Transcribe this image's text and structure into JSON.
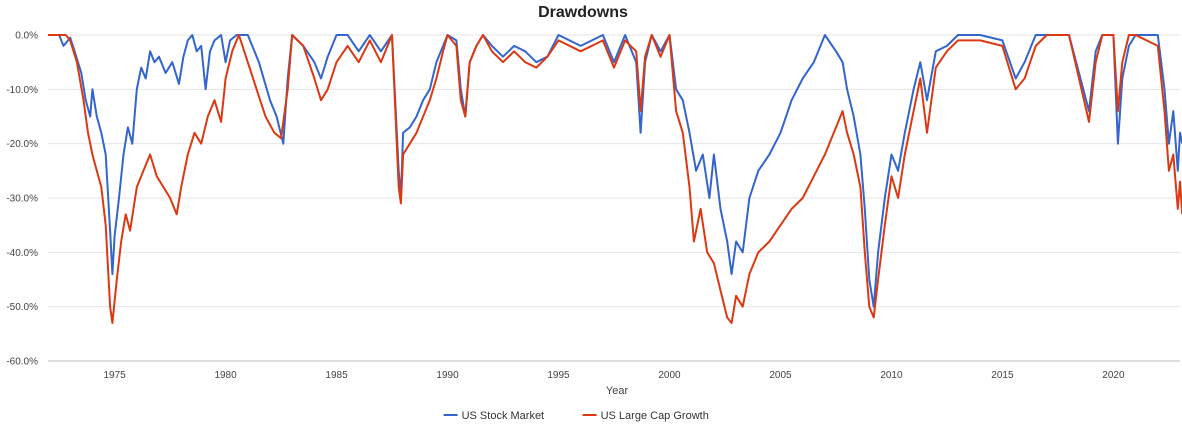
{
  "chart_data": {
    "type": "line",
    "title": "Drawdowns",
    "xlabel": "Year",
    "ylabel": "",
    "xlim": [
      1972,
      2023
    ],
    "ylim": [
      -60,
      0
    ],
    "y_ticks": [
      0,
      -10,
      -20,
      -30,
      -40,
      -50,
      -60
    ],
    "y_tick_labels": [
      "0.0%",
      "-10.0%",
      "-20.0%",
      "-30.0%",
      "-40.0%",
      "-50.0%",
      "-60.0%"
    ],
    "x_ticks": [
      1975,
      1980,
      1985,
      1990,
      1995,
      2000,
      2005,
      2010,
      2015,
      2020
    ],
    "x_tick_labels": [
      "1975",
      "1980",
      "1985",
      "1990",
      "1995",
      "2000",
      "2005",
      "2010",
      "2015",
      "2020"
    ],
    "grid": true,
    "legend_position": "bottom",
    "series": [
      {
        "name": "US Stock Market",
        "color": "#3366cc",
        "points": [
          [
            1972.0,
            0
          ],
          [
            1972.5,
            0
          ],
          [
            1972.7,
            -2
          ],
          [
            1973.0,
            -0.5
          ],
          [
            1973.2,
            -3
          ],
          [
            1973.5,
            -7
          ],
          [
            1973.7,
            -12
          ],
          [
            1973.9,
            -15
          ],
          [
            1974.0,
            -10
          ],
          [
            1974.2,
            -15
          ],
          [
            1974.4,
            -18
          ],
          [
            1974.6,
            -22
          ],
          [
            1974.8,
            -36
          ],
          [
            1974.9,
            -44
          ],
          [
            1975.0,
            -37
          ],
          [
            1975.2,
            -30
          ],
          [
            1975.4,
            -22
          ],
          [
            1975.6,
            -17
          ],
          [
            1975.8,
            -20
          ],
          [
            1976.0,
            -10
          ],
          [
            1976.2,
            -6
          ],
          [
            1976.4,
            -8
          ],
          [
            1976.6,
            -3
          ],
          [
            1976.8,
            -5
          ],
          [
            1977.0,
            -4
          ],
          [
            1977.3,
            -7
          ],
          [
            1977.6,
            -5
          ],
          [
            1977.9,
            -9
          ],
          [
            1978.1,
            -4
          ],
          [
            1978.3,
            -1
          ],
          [
            1978.5,
            0
          ],
          [
            1978.7,
            -3
          ],
          [
            1978.9,
            -2
          ],
          [
            1979.1,
            -10
          ],
          [
            1979.3,
            -3
          ],
          [
            1979.5,
            -1
          ],
          [
            1979.8,
            0
          ],
          [
            1980.0,
            -5
          ],
          [
            1980.2,
            -1
          ],
          [
            1980.5,
            0
          ],
          [
            1981.0,
            0
          ],
          [
            1981.5,
            -5
          ],
          [
            1982.0,
            -12
          ],
          [
            1982.3,
            -15
          ],
          [
            1982.6,
            -20
          ],
          [
            1982.8,
            -8
          ],
          [
            1983.0,
            0
          ],
          [
            1983.5,
            -2
          ],
          [
            1984.0,
            -5
          ],
          [
            1984.3,
            -8
          ],
          [
            1984.6,
            -4
          ],
          [
            1985.0,
            0
          ],
          [
            1985.5,
            0
          ],
          [
            1986.0,
            -3
          ],
          [
            1986.5,
            0
          ],
          [
            1987.0,
            -3
          ],
          [
            1987.5,
            0
          ],
          [
            1987.8,
            -25
          ],
          [
            1987.9,
            -30
          ],
          [
            1988.0,
            -18
          ],
          [
            1988.3,
            -17
          ],
          [
            1988.6,
            -15
          ],
          [
            1988.9,
            -12
          ],
          [
            1989.2,
            -10
          ],
          [
            1989.5,
            -5
          ],
          [
            1989.8,
            -2
          ],
          [
            1990.0,
            0
          ],
          [
            1990.4,
            -1
          ],
          [
            1990.6,
            -10
          ],
          [
            1990.8,
            -15
          ],
          [
            1991.0,
            -5
          ],
          [
            1991.3,
            -2
          ],
          [
            1991.6,
            0
          ],
          [
            1992.0,
            -2
          ],
          [
            1992.5,
            -4
          ],
          [
            1993.0,
            -2
          ],
          [
            1993.5,
            -3
          ],
          [
            1994.0,
            -5
          ],
          [
            1994.5,
            -4
          ],
          [
            1995.0,
            0
          ],
          [
            1996.0,
            -2
          ],
          [
            1997.0,
            0
          ],
          [
            1997.5,
            -5
          ],
          [
            1998.0,
            0
          ],
          [
            1998.5,
            -5
          ],
          [
            1998.7,
            -18
          ],
          [
            1998.9,
            -5
          ],
          [
            1999.2,
            0
          ],
          [
            1999.6,
            -3
          ],
          [
            2000.0,
            0
          ],
          [
            2000.3,
            -10
          ],
          [
            2000.6,
            -12
          ],
          [
            2000.9,
            -18
          ],
          [
            2001.2,
            -25
          ],
          [
            2001.5,
            -22
          ],
          [
            2001.8,
            -30
          ],
          [
            2002.0,
            -22
          ],
          [
            2002.3,
            -32
          ],
          [
            2002.6,
            -38
          ],
          [
            2002.8,
            -44
          ],
          [
            2003.0,
            -38
          ],
          [
            2003.3,
            -40
          ],
          [
            2003.6,
            -30
          ],
          [
            2004.0,
            -25
          ],
          [
            2004.5,
            -22
          ],
          [
            2005.0,
            -18
          ],
          [
            2005.5,
            -12
          ],
          [
            2006.0,
            -8
          ],
          [
            2006.5,
            -5
          ],
          [
            2007.0,
            0
          ],
          [
            2007.5,
            -3
          ],
          [
            2007.8,
            -5
          ],
          [
            2008.0,
            -10
          ],
          [
            2008.3,
            -15
          ],
          [
            2008.6,
            -22
          ],
          [
            2008.8,
            -32
          ],
          [
            2009.0,
            -45
          ],
          [
            2009.2,
            -50
          ],
          [
            2009.4,
            -40
          ],
          [
            2009.7,
            -30
          ],
          [
            2010.0,
            -22
          ],
          [
            2010.3,
            -25
          ],
          [
            2010.6,
            -18
          ],
          [
            2011.0,
            -10
          ],
          [
            2011.3,
            -5
          ],
          [
            2011.6,
            -12
          ],
          [
            2012.0,
            -3
          ],
          [
            2012.5,
            -2
          ],
          [
            2013.0,
            0
          ],
          [
            2014.0,
            0
          ],
          [
            2015.0,
            -1
          ],
          [
            2015.6,
            -8
          ],
          [
            2016.0,
            -5
          ],
          [
            2016.5,
            0
          ],
          [
            2017.0,
            0
          ],
          [
            2018.0,
            0
          ],
          [
            2018.9,
            -14
          ],
          [
            2019.2,
            -3
          ],
          [
            2019.5,
            0
          ],
          [
            2020.0,
            0
          ],
          [
            2020.2,
            -20
          ],
          [
            2020.4,
            -8
          ],
          [
            2020.7,
            -2
          ],
          [
            2021.0,
            0
          ],
          [
            2022.0,
            0
          ],
          [
            2022.3,
            -10
          ],
          [
            2022.5,
            -20
          ],
          [
            2022.7,
            -14
          ],
          [
            2022.9,
            -25
          ],
          [
            2023.0,
            -18
          ],
          [
            2023.1,
            -20
          ]
        ]
      },
      {
        "name": "US Large Cap Growth",
        "color": "#dc3912",
        "points": [
          [
            1972.0,
            0
          ],
          [
            1972.5,
            0
          ],
          [
            1972.8,
            0
          ],
          [
            1973.0,
            -1
          ],
          [
            1973.3,
            -5
          ],
          [
            1973.6,
            -12
          ],
          [
            1973.8,
            -18
          ],
          [
            1974.0,
            -22
          ],
          [
            1974.2,
            -25
          ],
          [
            1974.4,
            -28
          ],
          [
            1974.6,
            -35
          ],
          [
            1974.8,
            -50
          ],
          [
            1974.9,
            -53
          ],
          [
            1975.1,
            -45
          ],
          [
            1975.3,
            -38
          ],
          [
            1975.5,
            -33
          ],
          [
            1975.7,
            -36
          ],
          [
            1976.0,
            -28
          ],
          [
            1976.3,
            -25
          ],
          [
            1976.6,
            -22
          ],
          [
            1976.9,
            -26
          ],
          [
            1977.2,
            -28
          ],
          [
            1977.5,
            -30
          ],
          [
            1977.8,
            -33
          ],
          [
            1978.0,
            -28
          ],
          [
            1978.3,
            -22
          ],
          [
            1978.6,
            -18
          ],
          [
            1978.9,
            -20
          ],
          [
            1979.2,
            -15
          ],
          [
            1979.5,
            -12
          ],
          [
            1979.8,
            -16
          ],
          [
            1980.0,
            -8
          ],
          [
            1980.3,
            -3
          ],
          [
            1980.6,
            0
          ],
          [
            1981.0,
            -5
          ],
          [
            1981.4,
            -10
          ],
          [
            1981.8,
            -15
          ],
          [
            1982.2,
            -18
          ],
          [
            1982.5,
            -19
          ],
          [
            1982.8,
            -10
          ],
          [
            1983.0,
            0
          ],
          [
            1983.5,
            -2
          ],
          [
            1984.0,
            -8
          ],
          [
            1984.3,
            -12
          ],
          [
            1984.6,
            -10
          ],
          [
            1985.0,
            -5
          ],
          [
            1985.5,
            -2
          ],
          [
            1986.0,
            -5
          ],
          [
            1986.5,
            -1
          ],
          [
            1987.0,
            -5
          ],
          [
            1987.5,
            0
          ],
          [
            1987.8,
            -28
          ],
          [
            1987.9,
            -31
          ],
          [
            1988.0,
            -22
          ],
          [
            1988.3,
            -20
          ],
          [
            1988.6,
            -18
          ],
          [
            1988.9,
            -15
          ],
          [
            1989.2,
            -12
          ],
          [
            1989.5,
            -8
          ],
          [
            1989.8,
            -3
          ],
          [
            1990.0,
            0
          ],
          [
            1990.4,
            -2
          ],
          [
            1990.6,
            -12
          ],
          [
            1990.8,
            -15
          ],
          [
            1991.0,
            -5
          ],
          [
            1991.3,
            -2
          ],
          [
            1991.6,
            0
          ],
          [
            1992.0,
            -3
          ],
          [
            1992.5,
            -5
          ],
          [
            1993.0,
            -3
          ],
          [
            1993.5,
            -5
          ],
          [
            1994.0,
            -6
          ],
          [
            1994.5,
            -4
          ],
          [
            1995.0,
            -1
          ],
          [
            1996.0,
            -3
          ],
          [
            1997.0,
            -1
          ],
          [
            1997.5,
            -6
          ],
          [
            1998.0,
            -1
          ],
          [
            1998.5,
            -3
          ],
          [
            1998.7,
            -14
          ],
          [
            1998.9,
            -4
          ],
          [
            1999.2,
            0
          ],
          [
            1999.6,
            -4
          ],
          [
            2000.0,
            0
          ],
          [
            2000.3,
            -14
          ],
          [
            2000.6,
            -18
          ],
          [
            2000.9,
            -28
          ],
          [
            2001.1,
            -38
          ],
          [
            2001.4,
            -32
          ],
          [
            2001.7,
            -40
          ],
          [
            2002.0,
            -42
          ],
          [
            2002.3,
            -47
          ],
          [
            2002.6,
            -52
          ],
          [
            2002.8,
            -53
          ],
          [
            2003.0,
            -48
          ],
          [
            2003.3,
            -50
          ],
          [
            2003.6,
            -44
          ],
          [
            2004.0,
            -40
          ],
          [
            2004.5,
            -38
          ],
          [
            2005.0,
            -35
          ],
          [
            2005.5,
            -32
          ],
          [
            2006.0,
            -30
          ],
          [
            2006.5,
            -26
          ],
          [
            2007.0,
            -22
          ],
          [
            2007.5,
            -17
          ],
          [
            2007.8,
            -14
          ],
          [
            2008.0,
            -18
          ],
          [
            2008.3,
            -22
          ],
          [
            2008.6,
            -28
          ],
          [
            2008.8,
            -40
          ],
          [
            2009.0,
            -50
          ],
          [
            2009.2,
            -52
          ],
          [
            2009.4,
            -45
          ],
          [
            2009.7,
            -35
          ],
          [
            2010.0,
            -26
          ],
          [
            2010.3,
            -30
          ],
          [
            2010.6,
            -22
          ],
          [
            2011.0,
            -14
          ],
          [
            2011.3,
            -8
          ],
          [
            2011.6,
            -18
          ],
          [
            2012.0,
            -6
          ],
          [
            2012.5,
            -3
          ],
          [
            2013.0,
            -1
          ],
          [
            2014.0,
            -1
          ],
          [
            2015.0,
            -2
          ],
          [
            2015.6,
            -10
          ],
          [
            2016.0,
            -8
          ],
          [
            2016.5,
            -2
          ],
          [
            2017.0,
            0
          ],
          [
            2018.0,
            0
          ],
          [
            2018.9,
            -16
          ],
          [
            2019.2,
            -5
          ],
          [
            2019.5,
            0
          ],
          [
            2020.0,
            0
          ],
          [
            2020.2,
            -14
          ],
          [
            2020.4,
            -5
          ],
          [
            2020.7,
            0
          ],
          [
            2021.0,
            0
          ],
          [
            2022.0,
            -2
          ],
          [
            2022.3,
            -14
          ],
          [
            2022.5,
            -25
          ],
          [
            2022.7,
            -22
          ],
          [
            2022.9,
            -32
          ],
          [
            2023.0,
            -27
          ],
          [
            2023.1,
            -33
          ]
        ]
      }
    ]
  }
}
